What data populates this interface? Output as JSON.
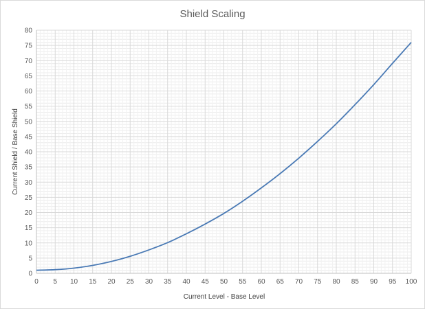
{
  "chart_data": {
    "type": "line",
    "title": "Shield Scaling",
    "xlabel": "Current Level - Base Level",
    "ylabel": "Current Shield / Base Shield",
    "xlim": [
      0,
      100
    ],
    "ylim": [
      0,
      80
    ],
    "x_ticks": [
      "0",
      "5",
      "10",
      "15",
      "20",
      "25",
      "30",
      "35",
      "40",
      "45",
      "50",
      "55",
      "60",
      "65",
      "70",
      "75",
      "80",
      "85",
      "90",
      "95",
      "100"
    ],
    "y_ticks": [
      "0",
      "5",
      "10",
      "15",
      "20",
      "25",
      "30",
      "35",
      "40",
      "45",
      "50",
      "55",
      "60",
      "65",
      "70",
      "75",
      "80"
    ],
    "grid": true,
    "legend": "none",
    "series": [
      {
        "color": "#4a7ab5",
        "x": [
          0,
          5,
          10,
          15,
          20,
          25,
          30,
          35,
          40,
          45,
          50,
          55,
          60,
          65,
          70,
          75,
          80,
          85,
          90,
          95,
          100
        ],
        "y": [
          1.0,
          1.2,
          1.7,
          2.6,
          3.9,
          5.6,
          7.7,
          10.1,
          13.0,
          16.2,
          19.7,
          23.7,
          28.1,
          32.8,
          37.9,
          43.4,
          49.2,
          55.5,
          62.1,
          69.1,
          76.0
        ]
      }
    ]
  },
  "colors": {
    "line": "#4a7ab5",
    "grid": "#d9d9d9",
    "text": "#595959"
  }
}
